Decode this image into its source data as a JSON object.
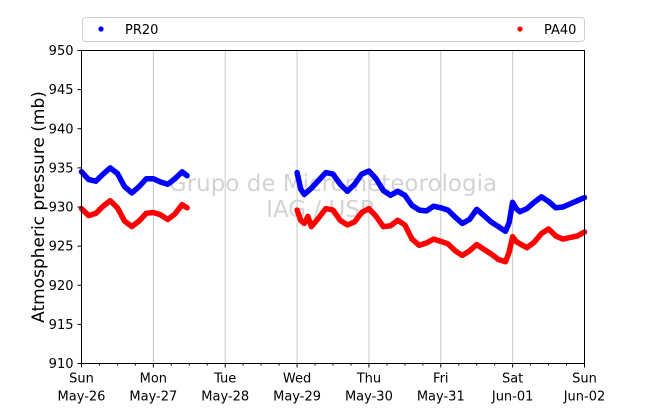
{
  "chart_data": {
    "type": "line",
    "title": "",
    "xlabel": "",
    "ylabel": "Atmospheric pressure (mb)",
    "ylim": [
      910,
      950
    ],
    "xlim": [
      0,
      7
    ],
    "x_unit": "days",
    "yticks": [
      910,
      915,
      920,
      925,
      930,
      935,
      940,
      945,
      950
    ],
    "xticks": [
      {
        "pos": 0,
        "day": "Sun",
        "date": "May-26"
      },
      {
        "pos": 1,
        "day": "Mon",
        "date": "May-27"
      },
      {
        "pos": 2,
        "day": "Tue",
        "date": "May-28"
      },
      {
        "pos": 3,
        "day": "Wed",
        "date": "May-29"
      },
      {
        "pos": 4,
        "day": "Thu",
        "date": "May-30"
      },
      {
        "pos": 5,
        "day": "Fri",
        "date": "May-31"
      },
      {
        "pos": 6,
        "day": "Sat",
        "date": "Jun-01"
      },
      {
        "pos": 7,
        "day": "Sun",
        "date": "Jun-02"
      }
    ],
    "grid": "vertical",
    "legend_position": "top",
    "watermark": [
      "Grupo de Micrometeorologia",
      "IAG / USP"
    ],
    "series": [
      {
        "name": "PR20",
        "color": "#0000ff",
        "segments": [
          [
            [
              0.0,
              934.5
            ],
            [
              0.1,
              933.5
            ],
            [
              0.2,
              933.3
            ],
            [
              0.3,
              934.2
            ],
            [
              0.4,
              935.0
            ],
            [
              0.5,
              934.3
            ],
            [
              0.6,
              932.6
            ],
            [
              0.7,
              931.8
            ],
            [
              0.8,
              932.6
            ],
            [
              0.9,
              933.6
            ],
            [
              1.0,
              933.6
            ],
            [
              1.1,
              933.2
            ],
            [
              1.2,
              932.9
            ],
            [
              1.3,
              933.6
            ],
            [
              1.4,
              934.5
            ],
            [
              1.47,
              934.0
            ]
          ],
          [
            [
              3.0,
              934.4
            ],
            [
              3.05,
              932.3
            ],
            [
              3.1,
              931.6
            ],
            [
              3.2,
              932.4
            ],
            [
              3.3,
              933.4
            ],
            [
              3.4,
              934.4
            ],
            [
              3.5,
              934.2
            ],
            [
              3.6,
              932.9
            ],
            [
              3.7,
              932.0
            ],
            [
              3.8,
              932.9
            ],
            [
              3.9,
              934.2
            ],
            [
              4.0,
              934.6
            ],
            [
              4.1,
              933.6
            ],
            [
              4.2,
              932.1
            ],
            [
              4.3,
              931.5
            ],
            [
              4.4,
              932.0
            ],
            [
              4.5,
              931.5
            ],
            [
              4.6,
              930.2
            ],
            [
              4.7,
              929.6
            ],
            [
              4.8,
              929.5
            ],
            [
              4.9,
              930.1
            ],
            [
              5.0,
              929.9
            ],
            [
              5.1,
              929.6
            ],
            [
              5.2,
              928.7
            ],
            [
              5.3,
              927.9
            ],
            [
              5.4,
              928.4
            ],
            [
              5.5,
              929.7
            ],
            [
              5.6,
              928.9
            ],
            [
              5.7,
              928.1
            ],
            [
              5.8,
              927.5
            ],
            [
              5.9,
              926.9
            ],
            [
              5.95,
              928.0
            ],
            [
              6.0,
              930.6
            ],
            [
              6.05,
              929.8
            ],
            [
              6.1,
              929.4
            ],
            [
              6.2,
              929.8
            ],
            [
              6.3,
              930.6
            ],
            [
              6.4,
              931.3
            ],
            [
              6.5,
              930.7
            ],
            [
              6.6,
              929.9
            ],
            [
              6.7,
              930.0
            ],
            [
              6.8,
              930.4
            ],
            [
              6.9,
              930.8
            ],
            [
              7.0,
              931.2
            ]
          ]
        ]
      },
      {
        "name": "PA40",
        "color": "#ff0000",
        "segments": [
          [
            [
              0.0,
              929.8
            ],
            [
              0.1,
              928.9
            ],
            [
              0.2,
              929.2
            ],
            [
              0.3,
              930.1
            ],
            [
              0.4,
              930.8
            ],
            [
              0.5,
              929.9
            ],
            [
              0.6,
              928.2
            ],
            [
              0.7,
              927.5
            ],
            [
              0.8,
              928.2
            ],
            [
              0.9,
              929.2
            ],
            [
              1.0,
              929.3
            ],
            [
              1.1,
              929.0
            ],
            [
              1.2,
              928.4
            ],
            [
              1.3,
              929.1
            ],
            [
              1.4,
              930.3
            ],
            [
              1.47,
              929.9
            ]
          ],
          [
            [
              3.0,
              929.6
            ],
            [
              3.05,
              928.3
            ],
            [
              3.1,
              927.9
            ],
            [
              3.15,
              928.8
            ],
            [
              3.2,
              927.5
            ],
            [
              3.3,
              928.6
            ],
            [
              3.4,
              929.8
            ],
            [
              3.5,
              929.6
            ],
            [
              3.6,
              928.3
            ],
            [
              3.7,
              927.7
            ],
            [
              3.8,
              928.1
            ],
            [
              3.9,
              929.3
            ],
            [
              4.0,
              929.8
            ],
            [
              4.1,
              928.8
            ],
            [
              4.2,
              927.5
            ],
            [
              4.3,
              927.6
            ],
            [
              4.4,
              928.3
            ],
            [
              4.5,
              927.7
            ],
            [
              4.6,
              925.9
            ],
            [
              4.7,
              925.1
            ],
            [
              4.8,
              925.4
            ],
            [
              4.9,
              925.9
            ],
            [
              5.0,
              925.6
            ],
            [
              5.1,
              925.3
            ],
            [
              5.2,
              924.4
            ],
            [
              5.3,
              923.8
            ],
            [
              5.4,
              924.4
            ],
            [
              5.5,
              925.2
            ],
            [
              5.6,
              924.6
            ],
            [
              5.7,
              924.0
            ],
            [
              5.8,
              923.3
            ],
            [
              5.9,
              923.0
            ],
            [
              5.95,
              924.2
            ],
            [
              6.0,
              926.2
            ],
            [
              6.05,
              925.6
            ],
            [
              6.1,
              925.3
            ],
            [
              6.2,
              924.8
            ],
            [
              6.3,
              925.5
            ],
            [
              6.4,
              926.6
            ],
            [
              6.5,
              927.2
            ],
            [
              6.6,
              926.3
            ],
            [
              6.7,
              925.9
            ],
            [
              6.8,
              926.1
            ],
            [
              6.9,
              926.3
            ],
            [
              7.0,
              926.8
            ]
          ]
        ]
      }
    ]
  }
}
